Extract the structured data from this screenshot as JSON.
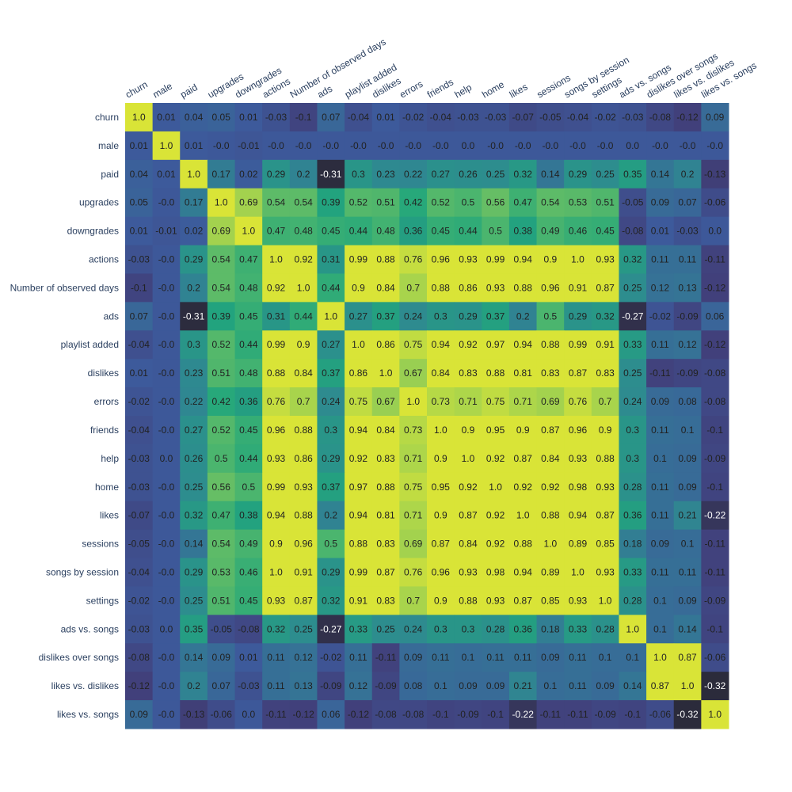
{
  "chart_data": {
    "type": "heatmap",
    "labels": [
      "churn",
      "male",
      "paid",
      "upgrades",
      "downgrades",
      "actions",
      "Number of observed days",
      "ads",
      "playlist added",
      "dislikes",
      "errors",
      "friends",
      "help",
      "home",
      "likes",
      "sessions",
      "songs by session",
      "settings",
      "ads vs. songs",
      "dislikes over songs",
      "likes vs. dislikes",
      "likes vs. songs"
    ],
    "value_labels": [
      [
        "1.0",
        "0.01",
        "0.04",
        "0.05",
        "0.01",
        "-0.03",
        "-0.1",
        "0.07",
        "-0.04",
        "0.01",
        "-0.02",
        "-0.04",
        "-0.03",
        "-0.03",
        "-0.07",
        "-0.05",
        "-0.04",
        "-0.02",
        "-0.03",
        "-0.08",
        "-0.12",
        "0.09"
      ],
      [
        "0.01",
        "1.0",
        "0.01",
        "-0.0",
        "-0.01",
        "-0.0",
        "-0.0",
        "-0.0",
        "-0.0",
        "-0.0",
        "-0.0",
        "-0.0",
        "0.0",
        "-0.0",
        "-0.0",
        "-0.0",
        "-0.0",
        "-0.0",
        "0.0",
        "-0.0",
        "-0.0",
        "-0.0"
      ],
      [
        "0.04",
        "0.01",
        "1.0",
        "0.17",
        "0.02",
        "0.29",
        "0.2",
        "-0.31",
        "0.3",
        "0.23",
        "0.22",
        "0.27",
        "0.26",
        "0.25",
        "0.32",
        "0.14",
        "0.29",
        "0.25",
        "0.35",
        "0.14",
        "0.2",
        "-0.13"
      ],
      [
        "0.05",
        "-0.0",
        "0.17",
        "1.0",
        "0.69",
        "0.54",
        "0.54",
        "0.39",
        "0.52",
        "0.51",
        "0.42",
        "0.52",
        "0.5",
        "0.56",
        "0.47",
        "0.54",
        "0.53",
        "0.51",
        "-0.05",
        "0.09",
        "0.07",
        "-0.06"
      ],
      [
        "0.01",
        "-0.01",
        "0.02",
        "0.69",
        "1.0",
        "0.47",
        "0.48",
        "0.45",
        "0.44",
        "0.48",
        "0.36",
        "0.45",
        "0.44",
        "0.5",
        "0.38",
        "0.49",
        "0.46",
        "0.45",
        "-0.08",
        "0.01",
        "-0.03",
        "0.0"
      ],
      [
        "-0.03",
        "-0.0",
        "0.29",
        "0.54",
        "0.47",
        "1.0",
        "0.92",
        "0.31",
        "0.99",
        "0.88",
        "0.76",
        "0.96",
        "0.93",
        "0.99",
        "0.94",
        "0.9",
        "1.0",
        "0.93",
        "0.32",
        "0.11",
        "0.11",
        "-0.11"
      ],
      [
        "-0.1",
        "-0.0",
        "0.2",
        "0.54",
        "0.48",
        "0.92",
        "1.0",
        "0.44",
        "0.9",
        "0.84",
        "0.7",
        "0.88",
        "0.86",
        "0.93",
        "0.88",
        "0.96",
        "0.91",
        "0.87",
        "0.25",
        "0.12",
        "0.13",
        "-0.12"
      ],
      [
        "0.07",
        "-0.0",
        "-0.31",
        "0.39",
        "0.45",
        "0.31",
        "0.44",
        "1.0",
        "0.27",
        "0.37",
        "0.24",
        "0.3",
        "0.29",
        "0.37",
        "0.2",
        "0.5",
        "0.29",
        "0.32",
        "-0.27",
        "-0.02",
        "-0.09",
        "0.06"
      ],
      [
        "-0.04",
        "-0.0",
        "0.3",
        "0.52",
        "0.44",
        "0.99",
        "0.9",
        "0.27",
        "1.0",
        "0.86",
        "0.75",
        "0.94",
        "0.92",
        "0.97",
        "0.94",
        "0.88",
        "0.99",
        "0.91",
        "0.33",
        "0.11",
        "0.12",
        "-0.12"
      ],
      [
        "0.01",
        "-0.0",
        "0.23",
        "0.51",
        "0.48",
        "0.88",
        "0.84",
        "0.37",
        "0.86",
        "1.0",
        "0.67",
        "0.84",
        "0.83",
        "0.88",
        "0.81",
        "0.83",
        "0.87",
        "0.83",
        "0.25",
        "-0.11",
        "-0.09",
        "-0.08"
      ],
      [
        "-0.02",
        "-0.0",
        "0.22",
        "0.42",
        "0.36",
        "0.76",
        "0.7",
        "0.24",
        "0.75",
        "0.67",
        "1.0",
        "0.73",
        "0.71",
        "0.75",
        "0.71",
        "0.69",
        "0.76",
        "0.7",
        "0.24",
        "0.09",
        "0.08",
        "-0.08"
      ],
      [
        "-0.04",
        "-0.0",
        "0.27",
        "0.52",
        "0.45",
        "0.96",
        "0.88",
        "0.3",
        "0.94",
        "0.84",
        "0.73",
        "1.0",
        "0.9",
        "0.95",
        "0.9",
        "0.87",
        "0.96",
        "0.9",
        "0.3",
        "0.11",
        "0.1",
        "-0.1"
      ],
      [
        "-0.03",
        "0.0",
        "0.26",
        "0.5",
        "0.44",
        "0.93",
        "0.86",
        "0.29",
        "0.92",
        "0.83",
        "0.71",
        "0.9",
        "1.0",
        "0.92",
        "0.87",
        "0.84",
        "0.93",
        "0.88",
        "0.3",
        "0.1",
        "0.09",
        "-0.09"
      ],
      [
        "-0.03",
        "-0.0",
        "0.25",
        "0.56",
        "0.5",
        "0.99",
        "0.93",
        "0.37",
        "0.97",
        "0.88",
        "0.75",
        "0.95",
        "0.92",
        "1.0",
        "0.92",
        "0.92",
        "0.98",
        "0.93",
        "0.28",
        "0.11",
        "0.09",
        "-0.1"
      ],
      [
        "-0.07",
        "-0.0",
        "0.32",
        "0.47",
        "0.38",
        "0.94",
        "0.88",
        "0.2",
        "0.94",
        "0.81",
        "0.71",
        "0.9",
        "0.87",
        "0.92",
        "1.0",
        "0.88",
        "0.94",
        "0.87",
        "0.36",
        "0.11",
        "0.21",
        "-0.22"
      ],
      [
        "-0.05",
        "-0.0",
        "0.14",
        "0.54",
        "0.49",
        "0.9",
        "0.96",
        "0.5",
        "0.88",
        "0.83",
        "0.69",
        "0.87",
        "0.84",
        "0.92",
        "0.88",
        "1.0",
        "0.89",
        "0.85",
        "0.18",
        "0.09",
        "0.1",
        "-0.11"
      ],
      [
        "-0.04",
        "-0.0",
        "0.29",
        "0.53",
        "0.46",
        "1.0",
        "0.91",
        "0.29",
        "0.99",
        "0.87",
        "0.76",
        "0.96",
        "0.93",
        "0.98",
        "0.94",
        "0.89",
        "1.0",
        "0.93",
        "0.33",
        "0.11",
        "0.11",
        "-0.11"
      ],
      [
        "-0.02",
        "-0.0",
        "0.25",
        "0.51",
        "0.45",
        "0.93",
        "0.87",
        "0.32",
        "0.91",
        "0.83",
        "0.7",
        "0.9",
        "0.88",
        "0.93",
        "0.87",
        "0.85",
        "0.93",
        "1.0",
        "0.28",
        "0.1",
        "0.09",
        "-0.09"
      ],
      [
        "-0.03",
        "0.0",
        "0.35",
        "-0.05",
        "-0.08",
        "0.32",
        "0.25",
        "-0.27",
        "0.33",
        "0.25",
        "0.24",
        "0.3",
        "0.3",
        "0.28",
        "0.36",
        "0.18",
        "0.33",
        "0.28",
        "1.0",
        "0.1",
        "0.14",
        "-0.1"
      ],
      [
        "-0.08",
        "-0.0",
        "0.14",
        "0.09",
        "0.01",
        "0.11",
        "0.12",
        "-0.02",
        "0.11",
        "-0.11",
        "0.09",
        "0.11",
        "0.1",
        "0.11",
        "0.11",
        "0.09",
        "0.11",
        "0.1",
        "0.1",
        "1.0",
        "0.87",
        "-0.06"
      ],
      [
        "-0.12",
        "-0.0",
        "0.2",
        "0.07",
        "-0.03",
        "0.11",
        "0.13",
        "-0.09",
        "0.12",
        "-0.09",
        "0.08",
        "0.1",
        "0.09",
        "0.09",
        "0.21",
        "0.1",
        "0.11",
        "0.09",
        "0.14",
        "0.87",
        "1.0",
        "-0.32"
      ],
      [
        "0.09",
        "-0.0",
        "-0.13",
        "-0.06",
        "0.0",
        "-0.11",
        "-0.12",
        "0.06",
        "-0.12",
        "-0.08",
        "-0.08",
        "-0.1",
        "-0.09",
        "-0.1",
        "-0.22",
        "-0.11",
        "-0.11",
        "-0.09",
        "-0.1",
        "-0.06",
        "-0.32",
        "1.0"
      ]
    ],
    "zlim": [
      -0.32,
      1.0
    ],
    "colorscale": [
      [
        "#2b2b3b",
        "#41407a",
        "#3d5a9b",
        "#2e8a90",
        "#21a67c",
        "#86c95a",
        "#d9e437"
      ]
    ],
    "colorscale_stops": [
      0.0,
      0.15,
      0.25,
      0.42,
      0.55,
      0.72,
      0.85
    ],
    "text_color_dark": "#222222",
    "text_color_light": "#ffffff",
    "showscale": false
  }
}
